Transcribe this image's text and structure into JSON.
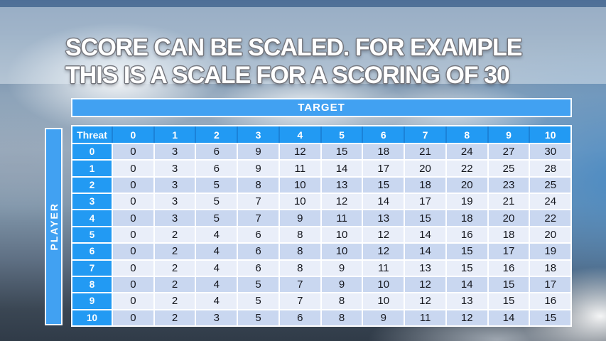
{
  "slide": {
    "title_line1": "SCORE CAN BE SCALED. FOR EXAMPLE",
    "title_line2": "THIS IS A SCALE FOR A SCORING OF 30"
  },
  "table": {
    "target_label": "TARGET",
    "player_label": "PLAYER",
    "corner_label": "Threat",
    "column_headers": [
      "0",
      "1",
      "2",
      "3",
      "4",
      "5",
      "6",
      "7",
      "8",
      "9",
      "10"
    ],
    "row_headers": [
      "0",
      "1",
      "2",
      "3",
      "4",
      "5",
      "6",
      "7",
      "8",
      "9",
      "10"
    ],
    "rows": [
      [
        0,
        3,
        6,
        9,
        12,
        15,
        18,
        21,
        24,
        27,
        30
      ],
      [
        0,
        3,
        6,
        9,
        11,
        14,
        17,
        20,
        22,
        25,
        28
      ],
      [
        0,
        3,
        5,
        8,
        10,
        13,
        15,
        18,
        20,
        23,
        25
      ],
      [
        0,
        3,
        5,
        7,
        10,
        12,
        14,
        17,
        19,
        21,
        24
      ],
      [
        0,
        3,
        5,
        7,
        9,
        11,
        13,
        15,
        18,
        20,
        22
      ],
      [
        0,
        2,
        4,
        6,
        8,
        10,
        12,
        14,
        16,
        18,
        20
      ],
      [
        0,
        2,
        4,
        6,
        8,
        10,
        12,
        14,
        15,
        17,
        19
      ],
      [
        0,
        2,
        4,
        6,
        8,
        9,
        11,
        13,
        15,
        16,
        18
      ],
      [
        0,
        2,
        4,
        5,
        7,
        9,
        10,
        12,
        14,
        15,
        17
      ],
      [
        0,
        2,
        4,
        5,
        7,
        8,
        10,
        12,
        13,
        15,
        16
      ],
      [
        0,
        2,
        3,
        5,
        6,
        8,
        9,
        11,
        12,
        14,
        15
      ]
    ]
  },
  "colors": {
    "header_blue": "#229AF3",
    "header_sep": "#1B82D8",
    "bar_blue": "#41A1F2",
    "row_even": "#C9D7F0",
    "row_odd": "#E9EEF9",
    "body_text": "#15171E"
  }
}
